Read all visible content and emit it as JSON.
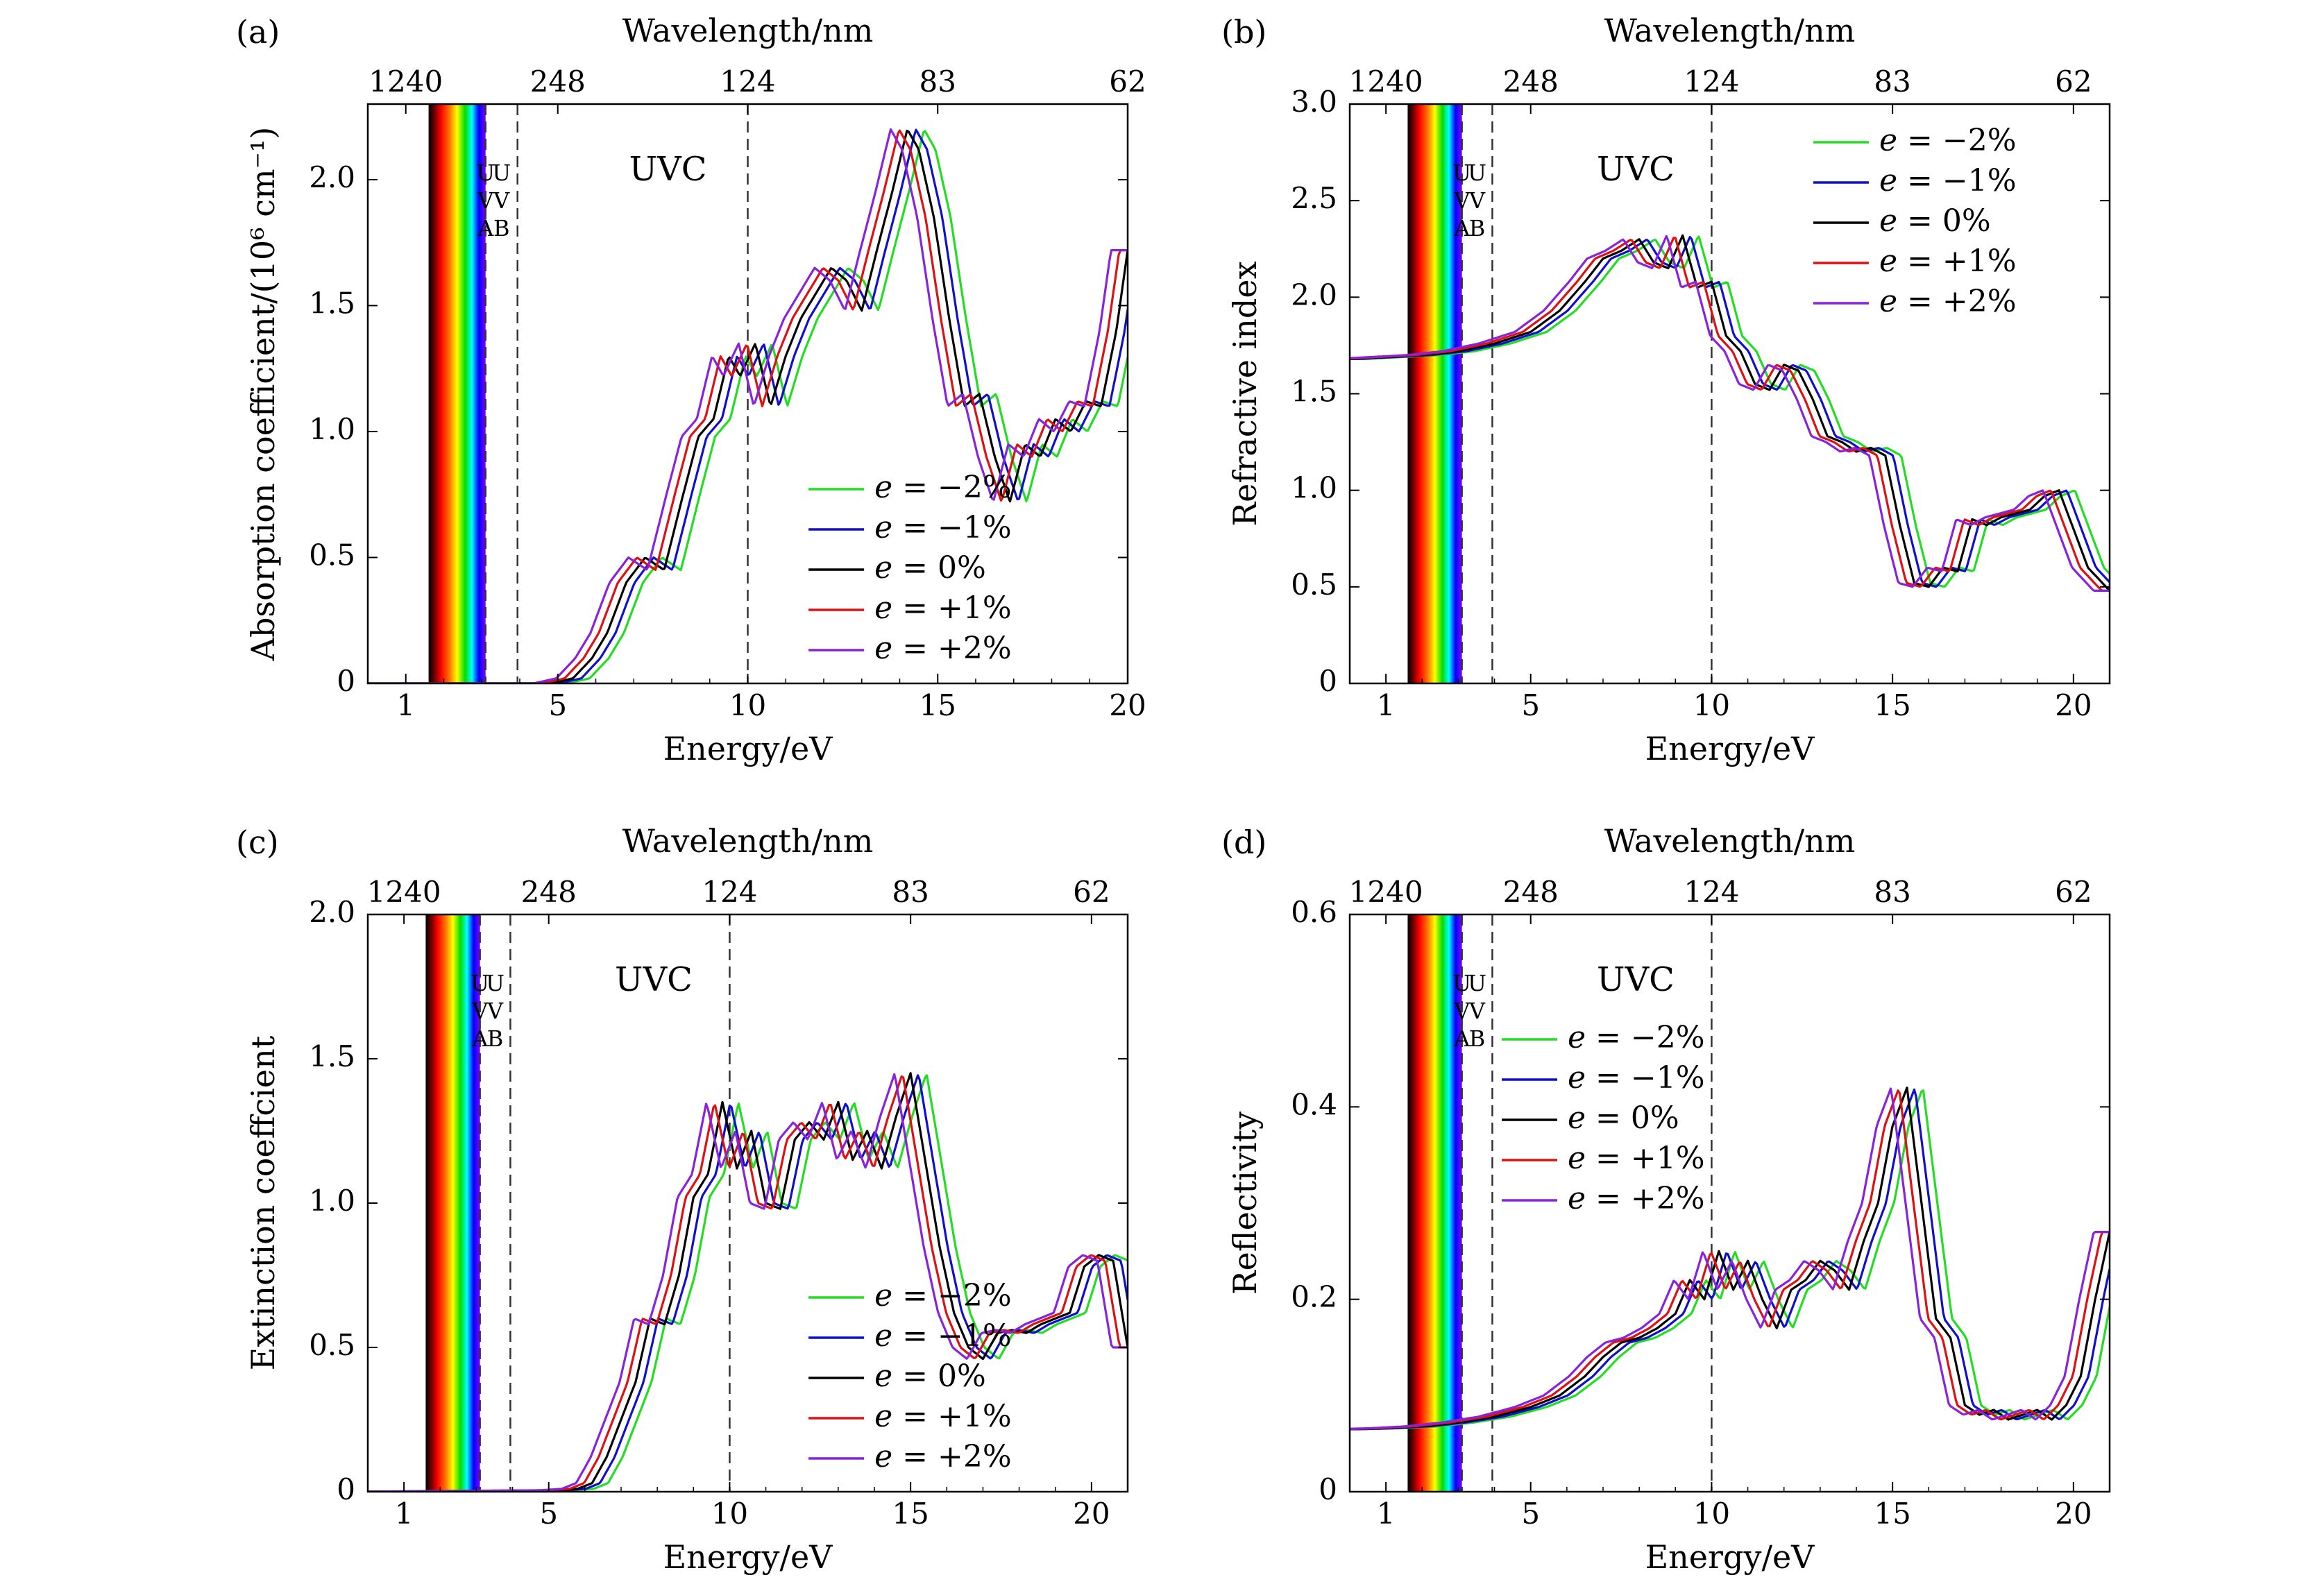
{
  "figure": {
    "colors": {
      "e=-2%": "#22dd22",
      "e=-1%": "#1010cc",
      "e=0%": "#000000",
      "e=+1%": "#dd1111",
      "e=+2%": "#8822dd"
    },
    "series_names": [
      "e=-2%",
      "e=-1%",
      "e=0%",
      "e=+1%",
      "e=+2%"
    ],
    "legend": [
      {
        "var": "e",
        "eq": " = ",
        "val": "−2%"
      },
      {
        "var": "e",
        "eq": " = ",
        "val": "−1%"
      },
      {
        "var": "e",
        "eq": " = ",
        "val": "0%"
      },
      {
        "var": "e",
        "eq": " = ",
        "val": "+1%"
      },
      {
        "var": "e",
        "eq": " = ",
        "val": "+2%"
      }
    ],
    "region_labels": {
      "uvc": "UVC",
      "uva": [
        "U",
        "V",
        "A"
      ],
      "uvb": [
        "U",
        "V",
        "B"
      ]
    },
    "uva_line_eV": 3.1,
    "uvb_line_eV": 3.94,
    "uvc_line_eV": 10.0,
    "visible_band_eV": [
      1.6,
      3.1
    ],
    "shift_per_percent_eV": 0.22
  },
  "chart_data": [
    {
      "panel": "(a)",
      "type": "line",
      "xlabel": "Energy/eV",
      "ylabel": "Absorption coefficient/(10⁶ cm⁻¹)",
      "top_label": "Wavelength/nm",
      "xlim": [
        0,
        20
      ],
      "ylim": [
        0,
        2.3
      ],
      "xticks": [
        1,
        5,
        10,
        15,
        20
      ],
      "yticks": [
        0,
        0.5,
        1.0,
        1.5,
        2.0
      ],
      "ytick_labels": [
        "0",
        "0.5",
        "1.0",
        "1.5",
        "2.0"
      ],
      "top_ticks_eV": [
        1,
        5,
        10,
        15,
        20
      ],
      "top_tick_labels": [
        "1240",
        "248",
        "124",
        "83",
        "62"
      ],
      "legend_pos": "lower-right",
      "base_x": [
        0,
        4.8,
        5.4,
        5.9,
        6.3,
        6.8,
        7.3,
        7.8,
        8.3,
        8.7,
        9.1,
        9.5,
        9.8,
        10.2,
        10.6,
        11.0,
        11.4,
        11.8,
        12.2,
        12.6,
        13.0,
        13.4,
        13.8,
        14.2,
        14.5,
        14.9,
        15.3,
        15.7,
        16.1,
        16.5,
        16.9,
        17.3,
        17.7,
        18.1,
        18.5,
        18.9,
        19.3,
        19.7,
        20.0
      ],
      "base_y": [
        0,
        0,
        0.02,
        0.1,
        0.2,
        0.4,
        0.5,
        0.45,
        0.75,
        0.98,
        1.05,
        1.3,
        1.22,
        1.35,
        1.1,
        1.3,
        1.45,
        1.55,
        1.65,
        1.6,
        1.48,
        1.72,
        1.95,
        2.2,
        2.12,
        1.85,
        1.45,
        1.1,
        1.15,
        0.9,
        0.72,
        0.95,
        0.9,
        1.05,
        1.0,
        1.12,
        1.1,
        1.4,
        1.72
      ]
    },
    {
      "panel": "(b)",
      "type": "line",
      "xlabel": "Energy/eV",
      "ylabel": "Refractive index",
      "top_label": "Wavelength/nm",
      "xlim": [
        0,
        21
      ],
      "ylim": [
        0,
        3.0
      ],
      "xticks": [
        1,
        5,
        10,
        15,
        20
      ],
      "yticks": [
        0,
        0.5,
        1.0,
        1.5,
        2.0,
        2.5,
        3.0
      ],
      "ytick_labels": [
        "0",
        "0.5",
        "1.0",
        "1.5",
        "2.0",
        "2.5",
        "3.0"
      ],
      "top_ticks_eV": [
        1,
        5,
        10,
        15,
        20
      ],
      "top_tick_labels": [
        "1240",
        "248",
        "124",
        "83",
        "62"
      ],
      "legend_pos": "top-right",
      "base_x": [
        0,
        1,
        2,
        3,
        4,
        5,
        5.8,
        6.5,
        7.0,
        7.5,
        8.0,
        8.4,
        8.8,
        9.2,
        9.6,
        10.0,
        10.4,
        10.8,
        11.2,
        11.6,
        12.0,
        12.4,
        12.8,
        13.2,
        13.6,
        14.0,
        14.4,
        14.8,
        15.2,
        15.6,
        16.0,
        16.4,
        16.8,
        17.2,
        17.6,
        18.0,
        18.4,
        18.8,
        19.2,
        19.6,
        20.0,
        20.4,
        21.0
      ],
      "base_y": [
        1.68,
        1.69,
        1.7,
        1.72,
        1.76,
        1.82,
        1.93,
        2.08,
        2.2,
        2.24,
        2.3,
        2.18,
        2.15,
        2.32,
        2.05,
        2.08,
        1.8,
        1.72,
        1.55,
        1.52,
        1.65,
        1.62,
        1.47,
        1.28,
        1.25,
        1.2,
        1.22,
        1.18,
        0.82,
        0.52,
        0.5,
        0.6,
        0.58,
        0.85,
        0.82,
        0.86,
        0.88,
        0.9,
        0.97,
        1.0,
        0.8,
        0.6,
        0.48
      ]
    },
    {
      "panel": "(c)",
      "type": "line",
      "xlabel": "Energy/eV",
      "ylabel": "Extinction coeffcient",
      "top_label": "Wavelength/nm",
      "xlim": [
        0,
        21
      ],
      "ylim": [
        0,
        2.0
      ],
      "xticks": [
        1,
        5,
        10,
        15,
        20
      ],
      "yticks": [
        0,
        0.5,
        1.0,
        1.5,
        2.0
      ],
      "ytick_labels": [
        "0",
        "0.5",
        "1.0",
        "1.5",
        "2.0"
      ],
      "top_ticks_eV": [
        1,
        5,
        10,
        15,
        20
      ],
      "top_tick_labels": [
        "1240",
        "248",
        "124",
        "83",
        "62"
      ],
      "legend_pos": "lower-right",
      "base_x": [
        0,
        5.2,
        5.8,
        6.2,
        6.6,
        7.0,
        7.4,
        7.8,
        8.2,
        8.6,
        9.0,
        9.4,
        9.8,
        10.2,
        10.6,
        11.0,
        11.4,
        11.8,
        12.2,
        12.6,
        13.0,
        13.4,
        13.8,
        14.2,
        14.6,
        15.0,
        15.4,
        15.8,
        16.2,
        16.6,
        17.0,
        17.4,
        17.8,
        18.2,
        18.6,
        19.0,
        19.4,
        19.8,
        20.2,
        20.6,
        21.0
      ],
      "base_y": [
        0,
        0.005,
        0.01,
        0.03,
        0.12,
        0.25,
        0.38,
        0.6,
        0.58,
        0.75,
        1.02,
        1.1,
        1.35,
        1.12,
        1.25,
        1.0,
        0.98,
        1.22,
        1.28,
        1.22,
        1.35,
        1.15,
        1.25,
        1.12,
        1.3,
        1.45,
        1.15,
        0.85,
        0.62,
        0.5,
        0.46,
        0.55,
        0.56,
        0.55,
        0.58,
        0.6,
        0.62,
        0.78,
        0.82,
        0.8,
        0.5
      ]
    },
    {
      "panel": "(d)",
      "type": "line",
      "xlabel": "Energy/eV",
      "ylabel": "Reflectivity",
      "top_label": "Wavelength/nm",
      "xlim": [
        0,
        21
      ],
      "ylim": [
        0,
        0.6
      ],
      "xticks": [
        1,
        5,
        10,
        15,
        20
      ],
      "yticks": [
        0,
        0.2,
        0.4,
        0.6
      ],
      "ytick_labels": [
        "0",
        "0.2",
        "0.4",
        "0.6"
      ],
      "top_ticks_eV": [
        1,
        5,
        10,
        15,
        20
      ],
      "top_tick_labels": [
        "1240",
        "248",
        "124",
        "83",
        "62"
      ],
      "legend_pos": "top-left",
      "base_x": [
        0,
        1,
        2,
        3,
        4,
        5,
        5.8,
        6.5,
        7.0,
        7.5,
        8.0,
        8.5,
        9.0,
        9.4,
        9.8,
        10.2,
        10.6,
        11.0,
        11.4,
        11.8,
        12.2,
        12.6,
        13.0,
        13.4,
        13.8,
        14.2,
        14.6,
        15.0,
        15.4,
        15.8,
        16.2,
        16.6,
        17.0,
        17.4,
        17.8,
        18.2,
        18.6,
        19.0,
        19.4,
        19.8,
        20.2,
        20.6,
        21.0
      ],
      "base_y": [
        0.065,
        0.066,
        0.068,
        0.072,
        0.078,
        0.088,
        0.1,
        0.12,
        0.14,
        0.155,
        0.16,
        0.17,
        0.185,
        0.22,
        0.2,
        0.25,
        0.21,
        0.24,
        0.2,
        0.17,
        0.21,
        0.22,
        0.24,
        0.23,
        0.21,
        0.26,
        0.3,
        0.38,
        0.42,
        0.3,
        0.18,
        0.16,
        0.09,
        0.08,
        0.085,
        0.075,
        0.08,
        0.085,
        0.075,
        0.09,
        0.12,
        0.2,
        0.27
      ]
    }
  ]
}
